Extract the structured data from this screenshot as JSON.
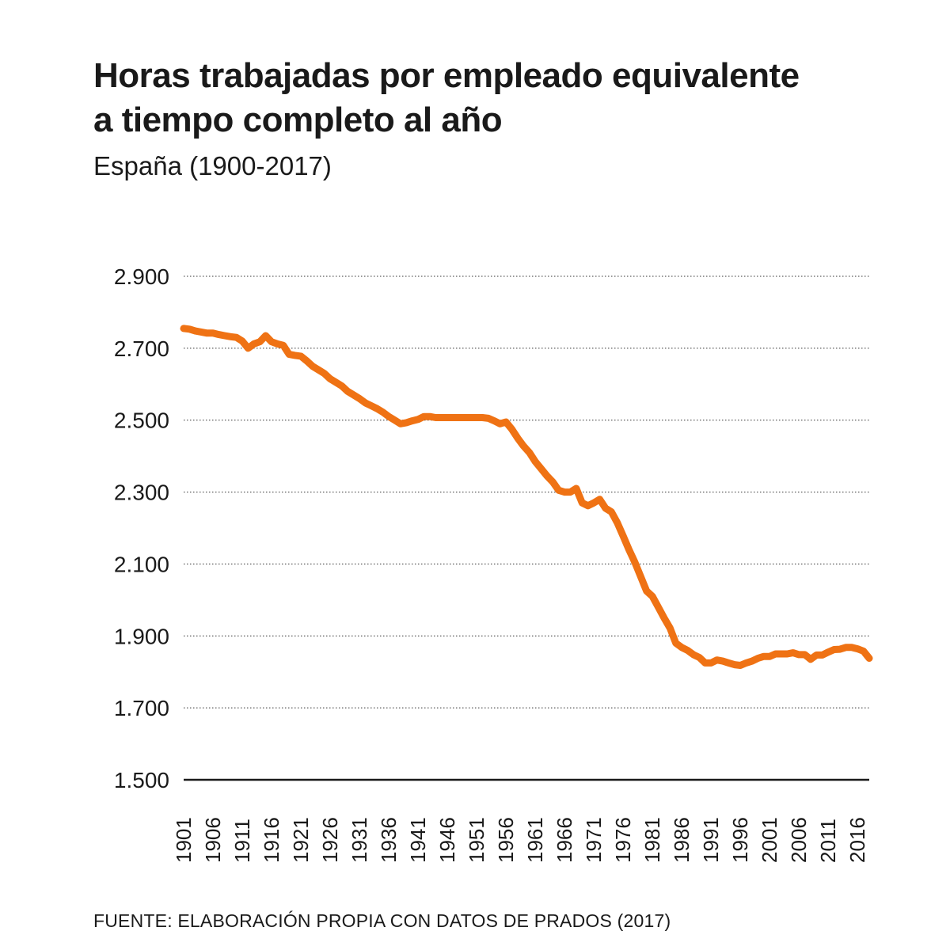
{
  "chart_data": {
    "type": "line",
    "title_lines": [
      "Horas trabajadas por empleado equivalente",
      "a tiempo completo al año"
    ],
    "subtitle": "España (1900-2017)",
    "source": "FUENTE: ELABORACIÓN PROPIA CON DATOS DE PRADOS (2017)",
    "xlabel": "",
    "ylabel": "",
    "ylim": [
      1500,
      2900
    ],
    "xlim": [
      1901,
      2018
    ],
    "yticks": [
      {
        "value": 1500,
        "label": "1.500"
      },
      {
        "value": 1700,
        "label": "1.700"
      },
      {
        "value": 1900,
        "label": "1.900"
      },
      {
        "value": 2100,
        "label": "2.100"
      },
      {
        "value": 2300,
        "label": "2.300"
      },
      {
        "value": 2500,
        "label": "2.500"
      },
      {
        "value": 2700,
        "label": "2.700"
      },
      {
        "value": 2900,
        "label": "2.900"
      }
    ],
    "xticks": [
      {
        "value": 1901,
        "label": "1901"
      },
      {
        "value": 1906,
        "label": "1906"
      },
      {
        "value": 1911,
        "label": "1911"
      },
      {
        "value": 1916,
        "label": "1916"
      },
      {
        "value": 1921,
        "label": "1921"
      },
      {
        "value": 1926,
        "label": "1926"
      },
      {
        "value": 1931,
        "label": "1931"
      },
      {
        "value": 1936,
        "label": "1936"
      },
      {
        "value": 1941,
        "label": "1941"
      },
      {
        "value": 1946,
        "label": "1946"
      },
      {
        "value": 1951,
        "label": "1951"
      },
      {
        "value": 1956,
        "label": "1956"
      },
      {
        "value": 1961,
        "label": "1961"
      },
      {
        "value": 1966,
        "label": "1966"
      },
      {
        "value": 1971,
        "label": "1971"
      },
      {
        "value": 1976,
        "label": "1976"
      },
      {
        "value": 1981,
        "label": "1981"
      },
      {
        "value": 1986,
        "label": "1986"
      },
      {
        "value": 1991,
        "label": "1991"
      },
      {
        "value": 1996,
        "label": "1996"
      },
      {
        "value": 2001,
        "label": "2001"
      },
      {
        "value": 2006,
        "label": "2006"
      },
      {
        "value": 2011,
        "label": "2011"
      },
      {
        "value": 2016,
        "label": "2016"
      }
    ],
    "grid": "horizontal-dotted",
    "series": [
      {
        "color": "#ef7214",
        "points": [
          [
            1901,
            2755
          ],
          [
            1902,
            2753
          ],
          [
            1903,
            2748
          ],
          [
            1904,
            2745
          ],
          [
            1905,
            2742
          ],
          [
            1906,
            2742
          ],
          [
            1907,
            2738
          ],
          [
            1908,
            2735
          ],
          [
            1909,
            2732
          ],
          [
            1910,
            2730
          ],
          [
            1911,
            2720
          ],
          [
            1912,
            2700
          ],
          [
            1913,
            2712
          ],
          [
            1914,
            2718
          ],
          [
            1915,
            2735
          ],
          [
            1916,
            2718
          ],
          [
            1917,
            2712
          ],
          [
            1918,
            2708
          ],
          [
            1919,
            2683
          ],
          [
            1920,
            2680
          ],
          [
            1921,
            2678
          ],
          [
            1922,
            2665
          ],
          [
            1923,
            2650
          ],
          [
            1924,
            2640
          ],
          [
            1925,
            2630
          ],
          [
            1926,
            2615
          ],
          [
            1927,
            2605
          ],
          [
            1928,
            2595
          ],
          [
            1929,
            2580
          ],
          [
            1930,
            2570
          ],
          [
            1931,
            2560
          ],
          [
            1932,
            2548
          ],
          [
            1933,
            2540
          ],
          [
            1934,
            2532
          ],
          [
            1935,
            2522
          ],
          [
            1936,
            2510
          ],
          [
            1937,
            2500
          ],
          [
            1938,
            2490
          ],
          [
            1939,
            2493
          ],
          [
            1940,
            2498
          ],
          [
            1941,
            2502
          ],
          [
            1942,
            2510
          ],
          [
            1943,
            2510
          ],
          [
            1944,
            2507
          ],
          [
            1945,
            2507
          ],
          [
            1946,
            2507
          ],
          [
            1947,
            2507
          ],
          [
            1948,
            2507
          ],
          [
            1949,
            2507
          ],
          [
            1950,
            2507
          ],
          [
            1951,
            2507
          ],
          [
            1952,
            2507
          ],
          [
            1953,
            2505
          ],
          [
            1954,
            2498
          ],
          [
            1955,
            2490
          ],
          [
            1956,
            2495
          ],
          [
            1957,
            2475
          ],
          [
            1958,
            2450
          ],
          [
            1959,
            2428
          ],
          [
            1960,
            2410
          ],
          [
            1961,
            2385
          ],
          [
            1962,
            2365
          ],
          [
            1963,
            2345
          ],
          [
            1964,
            2328
          ],
          [
            1965,
            2305
          ],
          [
            1966,
            2300
          ],
          [
            1967,
            2300
          ],
          [
            1968,
            2310
          ],
          [
            1969,
            2270
          ],
          [
            1970,
            2262
          ],
          [
            1971,
            2270
          ],
          [
            1972,
            2280
          ],
          [
            1973,
            2255
          ],
          [
            1974,
            2245
          ],
          [
            1975,
            2215
          ],
          [
            1976,
            2178
          ],
          [
            1977,
            2140
          ],
          [
            1978,
            2105
          ],
          [
            1979,
            2065
          ],
          [
            1980,
            2025
          ],
          [
            1981,
            2010
          ],
          [
            1982,
            1980
          ],
          [
            1983,
            1950
          ],
          [
            1984,
            1922
          ],
          [
            1985,
            1880
          ],
          [
            1986,
            1868
          ],
          [
            1987,
            1860
          ],
          [
            1988,
            1848
          ],
          [
            1989,
            1840
          ],
          [
            1990,
            1825
          ],
          [
            1991,
            1825
          ],
          [
            1992,
            1833
          ],
          [
            1993,
            1830
          ],
          [
            1994,
            1825
          ],
          [
            1995,
            1820
          ],
          [
            1996,
            1818
          ],
          [
            1997,
            1825
          ],
          [
            1998,
            1830
          ],
          [
            1999,
            1838
          ],
          [
            2000,
            1843
          ],
          [
            2001,
            1843
          ],
          [
            2002,
            1850
          ],
          [
            2003,
            1850
          ],
          [
            2004,
            1850
          ],
          [
            2005,
            1853
          ],
          [
            2006,
            1848
          ],
          [
            2007,
            1848
          ],
          [
            2008,
            1835
          ],
          [
            2009,
            1847
          ],
          [
            2010,
            1847
          ],
          [
            2011,
            1855
          ],
          [
            2012,
            1862
          ],
          [
            2013,
            1863
          ],
          [
            2014,
            1868
          ],
          [
            2015,
            1868
          ],
          [
            2016,
            1864
          ],
          [
            2017,
            1858
          ],
          [
            2018,
            1838
          ]
        ]
      }
    ]
  }
}
